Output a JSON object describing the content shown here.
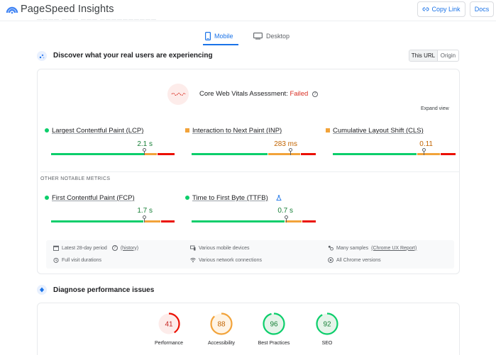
{
  "header": {
    "brand": "PageSpeed Insights",
    "copy_link": "Copy Link",
    "docs": "Docs"
  },
  "tabs": [
    {
      "label": "Mobile",
      "active": true
    },
    {
      "label": "Desktop",
      "active": false
    }
  ],
  "field_data": {
    "title": "Discover what your real users are experiencing",
    "toggle": [
      "This URL",
      "Origin"
    ],
    "assessment_label": "Core Web Vitals Assessment:",
    "assessment_status": "Failed",
    "expand": "Expand view",
    "core_metrics": [
      {
        "label": "Largest Contentful Paint (LCP)",
        "value": "2.1 s",
        "status": "good",
        "distribution": [
          0.76,
          0.1,
          0.14
        ]
      },
      {
        "label": "Interaction to Next Paint (INP)",
        "value": "283 ms",
        "status": "needs-improvement",
        "distribution": [
          0.62,
          0.26,
          0.12
        ]
      },
      {
        "label": "Cumulative Layout Shift (CLS)",
        "value": "0.11",
        "status": "needs-improvement",
        "distribution": [
          0.69,
          0.19,
          0.12
        ]
      }
    ],
    "other_heading": "OTHER NOTABLE METRICS",
    "other_metrics": [
      {
        "label": "First Contentful Paint (FCP)",
        "value": "1.7 s",
        "status": "good",
        "distribution": [
          0.75,
          0.14,
          0.11
        ]
      },
      {
        "label": "Time to First Byte (TTFB)",
        "value": "0.7 s",
        "status": "good",
        "distribution": [
          0.76,
          0.13,
          0.11
        ]
      }
    ],
    "footer": {
      "period": "Latest 28-day period",
      "history": "(history)",
      "devices": "Various mobile devices",
      "samples_prefix": "Many samples",
      "samples_link": "(Chrome UX Report)",
      "durations": "Full visit durations",
      "network": "Various network connections",
      "versions": "All Chrome versions"
    }
  },
  "diagnose": {
    "title": "Diagnose performance issues",
    "scores": [
      {
        "label": "Performance",
        "value": "41",
        "score": 41,
        "color": "#eb0f00",
        "bg": "#fdecea"
      },
      {
        "label": "Accessibility",
        "value": "88",
        "score": 88,
        "color": "#f2a33a",
        "bg": "#fff4e5"
      },
      {
        "label": "Best Practices",
        "value": "96",
        "score": 96,
        "color": "#0cce6b",
        "bg": "#e6f4ea"
      },
      {
        "label": "SEO",
        "value": "92",
        "score": 92,
        "color": "#0cce6b",
        "bg": "#e6f4ea"
      }
    ]
  },
  "colors": {
    "accent": "#1a73e8",
    "good": "#0cce6b",
    "average": "#f2a33a",
    "poor": "#eb0f00"
  }
}
